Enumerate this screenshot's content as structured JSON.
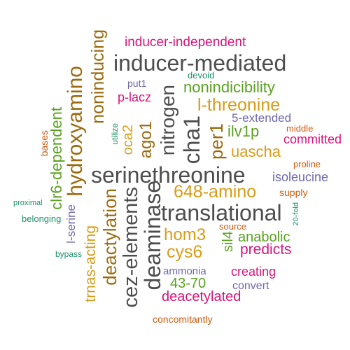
{
  "palette": {
    "gray": "#4d4d4d",
    "magenta": "#d6157a",
    "green": "#5aa121",
    "gold": "#d89b17",
    "brown": "#9b6a0e",
    "purple": "#6f68ab",
    "orange": "#cf5b0e",
    "teal": "#1e9068"
  },
  "words": [
    "inducer-independent",
    "inducer-mediated",
    "noninducing",
    "hydroxyamino",
    "devoid",
    "put1",
    "p-lacz",
    "nonindicibility",
    "l-threonine",
    "nitrogen",
    "ago1",
    "oca2",
    "cha1",
    "per1",
    "5-extended",
    "middle",
    "ilv1p",
    "committed",
    "uascha",
    "bases",
    "utilize",
    "clr6-dependent",
    "proline",
    "serinethreonine",
    "isoleucine",
    "648-amino",
    "supply",
    "proximal",
    "translational",
    "20-fold",
    "belonging",
    "l-serine",
    "deactylation",
    "cez-elements",
    "deaminase",
    "source",
    "hom3",
    "anabolic",
    "trnas-acting",
    "bypass",
    "cys6",
    "sil4",
    "predicts",
    "ammonia",
    "creating",
    "43-70",
    "convert",
    "deacetylated",
    "concomitantly"
  ]
}
